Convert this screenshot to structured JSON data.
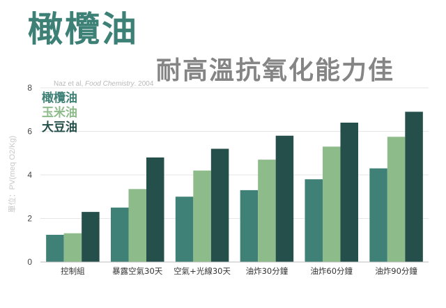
{
  "header": {
    "title": "橄欖油",
    "subtitle": "耐高溫抗氧化能力佳"
  },
  "chart_data": {
    "type": "bar",
    "source_note_prefix": "Naz et al, ",
    "source_note_journal": "Food Chemistry",
    "source_note_suffix": ". 2004",
    "ylabel": "單位：PV(meq O2/Kg)",
    "ylim": [
      0,
      8
    ],
    "yticks": [
      0,
      2,
      4,
      6,
      8
    ],
    "grid": true,
    "legend_position": "top-left",
    "categories": [
      "控制組",
      "暴露空氣30天",
      "空氣+光線30天",
      "油炸30分鐘",
      "油炸60分鐘",
      "油炸90分鐘"
    ],
    "series": [
      {
        "name": "橄欖油",
        "color": "#3f8176",
        "values": [
          1.25,
          2.5,
          3.0,
          3.3,
          3.8,
          4.3
        ]
      },
      {
        "name": "玉米油",
        "color": "#8dbb8a",
        "values": [
          1.32,
          3.35,
          4.2,
          4.7,
          5.3,
          5.75
        ]
      },
      {
        "name": "大豆油",
        "color": "#244f4a",
        "values": [
          2.3,
          4.8,
          5.2,
          5.8,
          6.4,
          6.9
        ]
      }
    ]
  }
}
